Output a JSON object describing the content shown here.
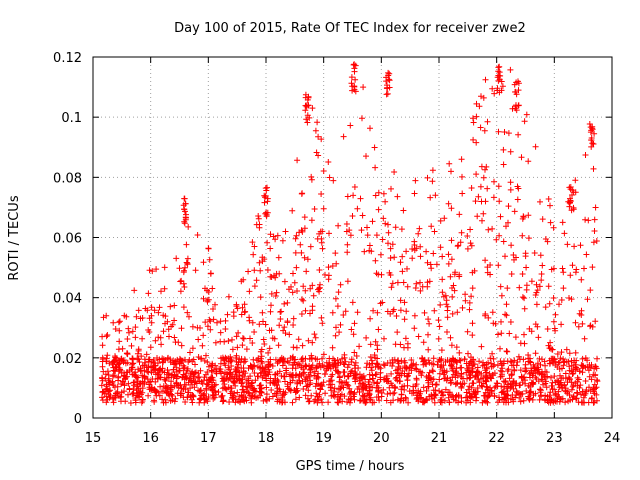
{
  "chart_data": {
    "type": "scatter",
    "title": "Day 100 of 2015, Rate Of TEC Index for receiver zwe2",
    "xlabel": "GPS time / hours",
    "ylabel": "ROTI / TECUs",
    "xlim": [
      15,
      24
    ],
    "ylim": [
      0,
      0.12
    ],
    "xticks": [
      15,
      16,
      17,
      18,
      19,
      20,
      21,
      22,
      23,
      24
    ],
    "xtick_labels": [
      "15",
      "16",
      "17",
      "18",
      "19",
      "20",
      "21",
      "22",
      "23",
      "24"
    ],
    "yticks": [
      0,
      0.02,
      0.04,
      0.06,
      0.08,
      0.1,
      0.12
    ],
    "ytick_labels": [
      "0",
      "0.02",
      "0.04",
      "0.06",
      "0.08",
      "0.1",
      "0.12"
    ],
    "grid": true,
    "marker": "+",
    "color": "#ff0000",
    "series": [
      {
        "name": "ROTI",
        "generated": true,
        "x_range": [
          15.15,
          23.75
        ],
        "note": "Dense cloud of several thousand samples; envelope read from the figure",
        "baseline_band": [
          0.005,
          0.02
        ],
        "envelope": [
          {
            "x": 15.2,
            "ymax": 0.035
          },
          {
            "x": 15.5,
            "ymax": 0.045
          },
          {
            "x": 15.8,
            "ymax": 0.045
          },
          {
            "x": 16.0,
            "ymax": 0.052
          },
          {
            "x": 16.3,
            "ymax": 0.05
          },
          {
            "x": 16.6,
            "ymax": 0.075
          },
          {
            "x": 16.9,
            "ymax": 0.065
          },
          {
            "x": 17.2,
            "ymax": 0.045
          },
          {
            "x": 17.5,
            "ymax": 0.04
          },
          {
            "x": 17.8,
            "ymax": 0.065
          },
          {
            "x": 18.0,
            "ymax": 0.078
          },
          {
            "x": 18.3,
            "ymax": 0.06
          },
          {
            "x": 18.7,
            "ymax": 0.112
          },
          {
            "x": 19.0,
            "ymax": 0.09
          },
          {
            "x": 19.3,
            "ymax": 0.09
          },
          {
            "x": 19.5,
            "ymax": 0.12
          },
          {
            "x": 19.8,
            "ymax": 0.105
          },
          {
            "x": 20.1,
            "ymax": 0.116
          },
          {
            "x": 20.4,
            "ymax": 0.07
          },
          {
            "x": 20.8,
            "ymax": 0.09
          },
          {
            "x": 21.2,
            "ymax": 0.085
          },
          {
            "x": 21.6,
            "ymax": 0.105
          },
          {
            "x": 22.0,
            "ymax": 0.12
          },
          {
            "x": 22.3,
            "ymax": 0.115
          },
          {
            "x": 22.7,
            "ymax": 0.09
          },
          {
            "x": 23.0,
            "ymax": 0.065
          },
          {
            "x": 23.3,
            "ymax": 0.078
          },
          {
            "x": 23.7,
            "ymax": 0.1
          }
        ],
        "clusters": [
          {
            "x": 18.72,
            "y": 0.108
          },
          {
            "x": 19.52,
            "y": 0.118
          },
          {
            "x": 20.12,
            "y": 0.115
          },
          {
            "x": 22.05,
            "y": 0.118
          },
          {
            "x": 22.35,
            "y": 0.112
          },
          {
            "x": 23.65,
            "y": 0.1
          },
          {
            "x": 16.6,
            "y": 0.074
          },
          {
            "x": 18.0,
            "y": 0.077
          },
          {
            "x": 23.3,
            "y": 0.078
          }
        ]
      }
    ]
  }
}
